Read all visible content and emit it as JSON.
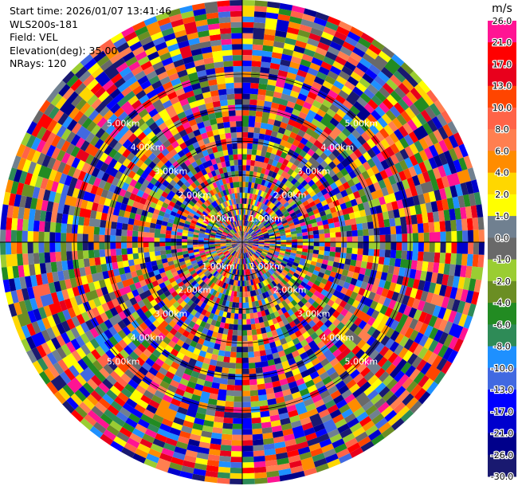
{
  "header": {
    "start_time": "Start time: 2026/01/07 13:41:46",
    "instrument": "WLS200s-181",
    "field": "Field: VEL",
    "elevation": "Elevation(deg): 35.00",
    "nrays": "NRays: 120"
  },
  "colorbar": {
    "unit": "m/s",
    "ticks": [
      "26.0",
      "21.0",
      "17.0",
      "13.0",
      "10.0",
      "8.0",
      "6.0",
      "4.0",
      "2.0",
      "1.0",
      "0.0",
      "-1.0",
      "-2.0",
      "-4.0",
      "-6.0",
      "-8.0",
      "-10.0",
      "-13.0",
      "-17.0",
      "-21.0",
      "-26.0",
      "-30.0"
    ],
    "colors": [
      "#ff1493",
      "#ff0000",
      "#e8001c",
      "#ff4500",
      "#ff6347",
      "#ff7f50",
      "#ff8c00",
      "#ffd700",
      "#ffff00",
      "#708090",
      "#696969",
      "#9acd32",
      "#6b8e23",
      "#228b22",
      "#2e8b57",
      "#1e90ff",
      "#4169e1",
      "#0000ff",
      "#0000cd",
      "#00008b",
      "#191970"
    ]
  },
  "chart_data": {
    "type": "heatmap",
    "subtype": "radar PPI (plan position indicator)",
    "field": "VEL",
    "units": "m/s",
    "n_rays": 120,
    "elevation_deg": 35.0,
    "range_rings_km": [
      1.0,
      2.0,
      3.0,
      4.0,
      5.0
    ],
    "ring_labels": [
      "1.00km",
      "2.00km",
      "3.00km",
      "4.00km",
      "5.00km"
    ],
    "max_range_km": 7.2,
    "color_scale_bounds": [
      26.0,
      21.0,
      17.0,
      13.0,
      10.0,
      8.0,
      6.0,
      4.0,
      2.0,
      1.0,
      0.0,
      -1.0,
      -2.0,
      -4.0,
      -6.0,
      -8.0,
      -10.0,
      -13.0,
      -17.0,
      -21.0,
      -26.0,
      -30.0
    ]
  }
}
